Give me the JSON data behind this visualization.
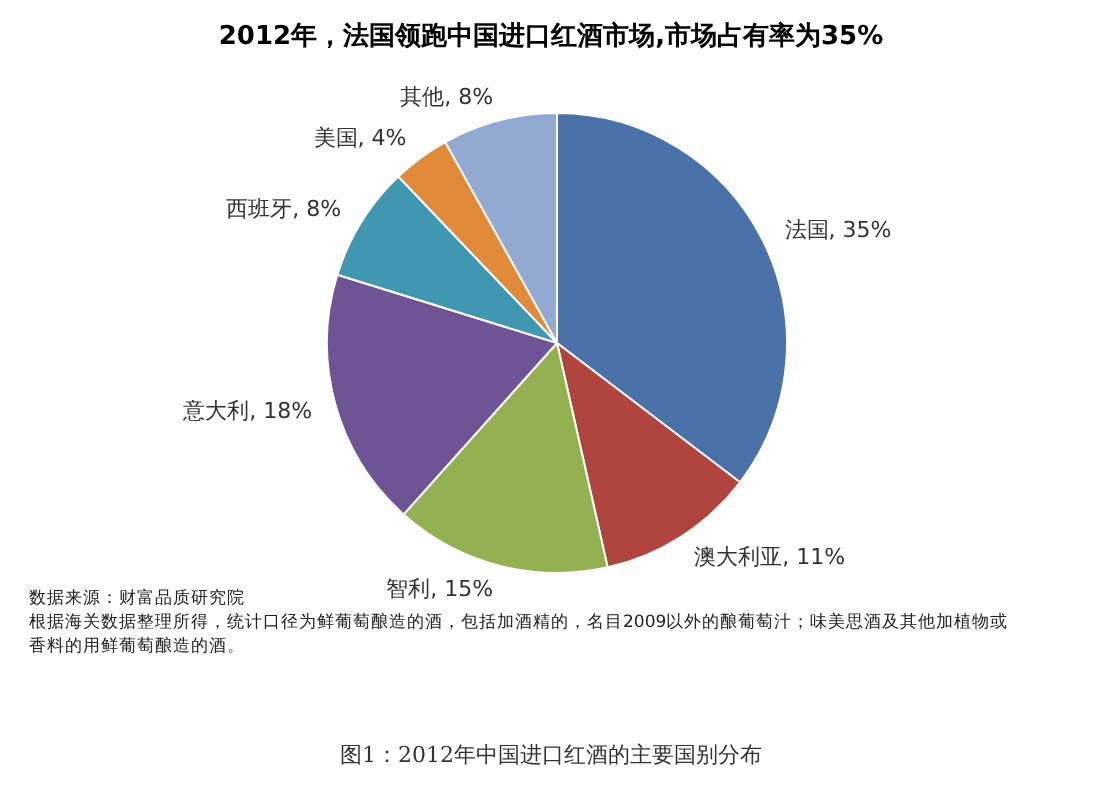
{
  "chart_data": {
    "type": "pie",
    "title": "2012年，法国领跑中国进口红酒市场,市场占有率为35%",
    "categories": [
      "法国",
      "澳大利亚",
      "智利",
      "意大利",
      "西班牙",
      "美国",
      "其他"
    ],
    "values": [
      35,
      11,
      15,
      18,
      8,
      4,
      8
    ],
    "value_labels": [
      "35%",
      "11%",
      "15%",
      "18%",
      "8%",
      "4%",
      "8%"
    ],
    "colors": [
      "#4a72a8",
      "#b0443f",
      "#94b152",
      "#6f5495",
      "#3f98b0",
      "#e08a3a",
      "#94a9d2"
    ],
    "legend": false,
    "annotations": [
      "数据来源：财富品质研究院",
      "根据海关数据整理所得，统计口径为鲜葡萄酿造的酒，包括加酒精的，名目2009以外的酿葡萄汁；味美思酒及其他加植物或香料的用鲜葡萄酿造的酒。",
      "图1：2012年中国进口红酒的主要国别分布"
    ]
  }
}
